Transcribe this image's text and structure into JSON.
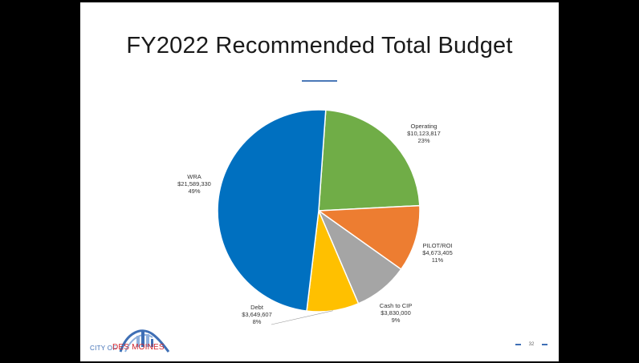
{
  "slide": {
    "title": "FY2022 Recommended Total Budget",
    "page_number": "32",
    "logo_city_text": "CITY OF",
    "logo_name_text": "DES MOINES",
    "logo_colors": {
      "blue": "#3f6fb5",
      "red": "#d2262f"
    }
  },
  "chart_data": {
    "type": "pie",
    "title": "FY2022 Recommended Total Budget",
    "slices": [
      {
        "name": "Operating",
        "amount": "$10,123,817",
        "percent": "23%",
        "value": 10123817,
        "color": "#70ad47"
      },
      {
        "name": "PILOT/ROI",
        "amount": "$4,673,405",
        "percent": "11%",
        "value": 4673405,
        "color": "#ed7d31"
      },
      {
        "name": "Cash to CIP",
        "amount": "$3,830,000",
        "percent": "9%",
        "value": 3830000,
        "color": "#a5a5a5"
      },
      {
        "name": "Debt",
        "amount": "$3,649,607",
        "percent": "8%",
        "value": 3649607,
        "color": "#ffc000"
      },
      {
        "name": "WRA",
        "amount": "$21,589,330",
        "percent": "49%",
        "value": 21589330,
        "color": "#0070c0"
      }
    ],
    "start_angle_deg": 4,
    "direction": "clockwise"
  }
}
